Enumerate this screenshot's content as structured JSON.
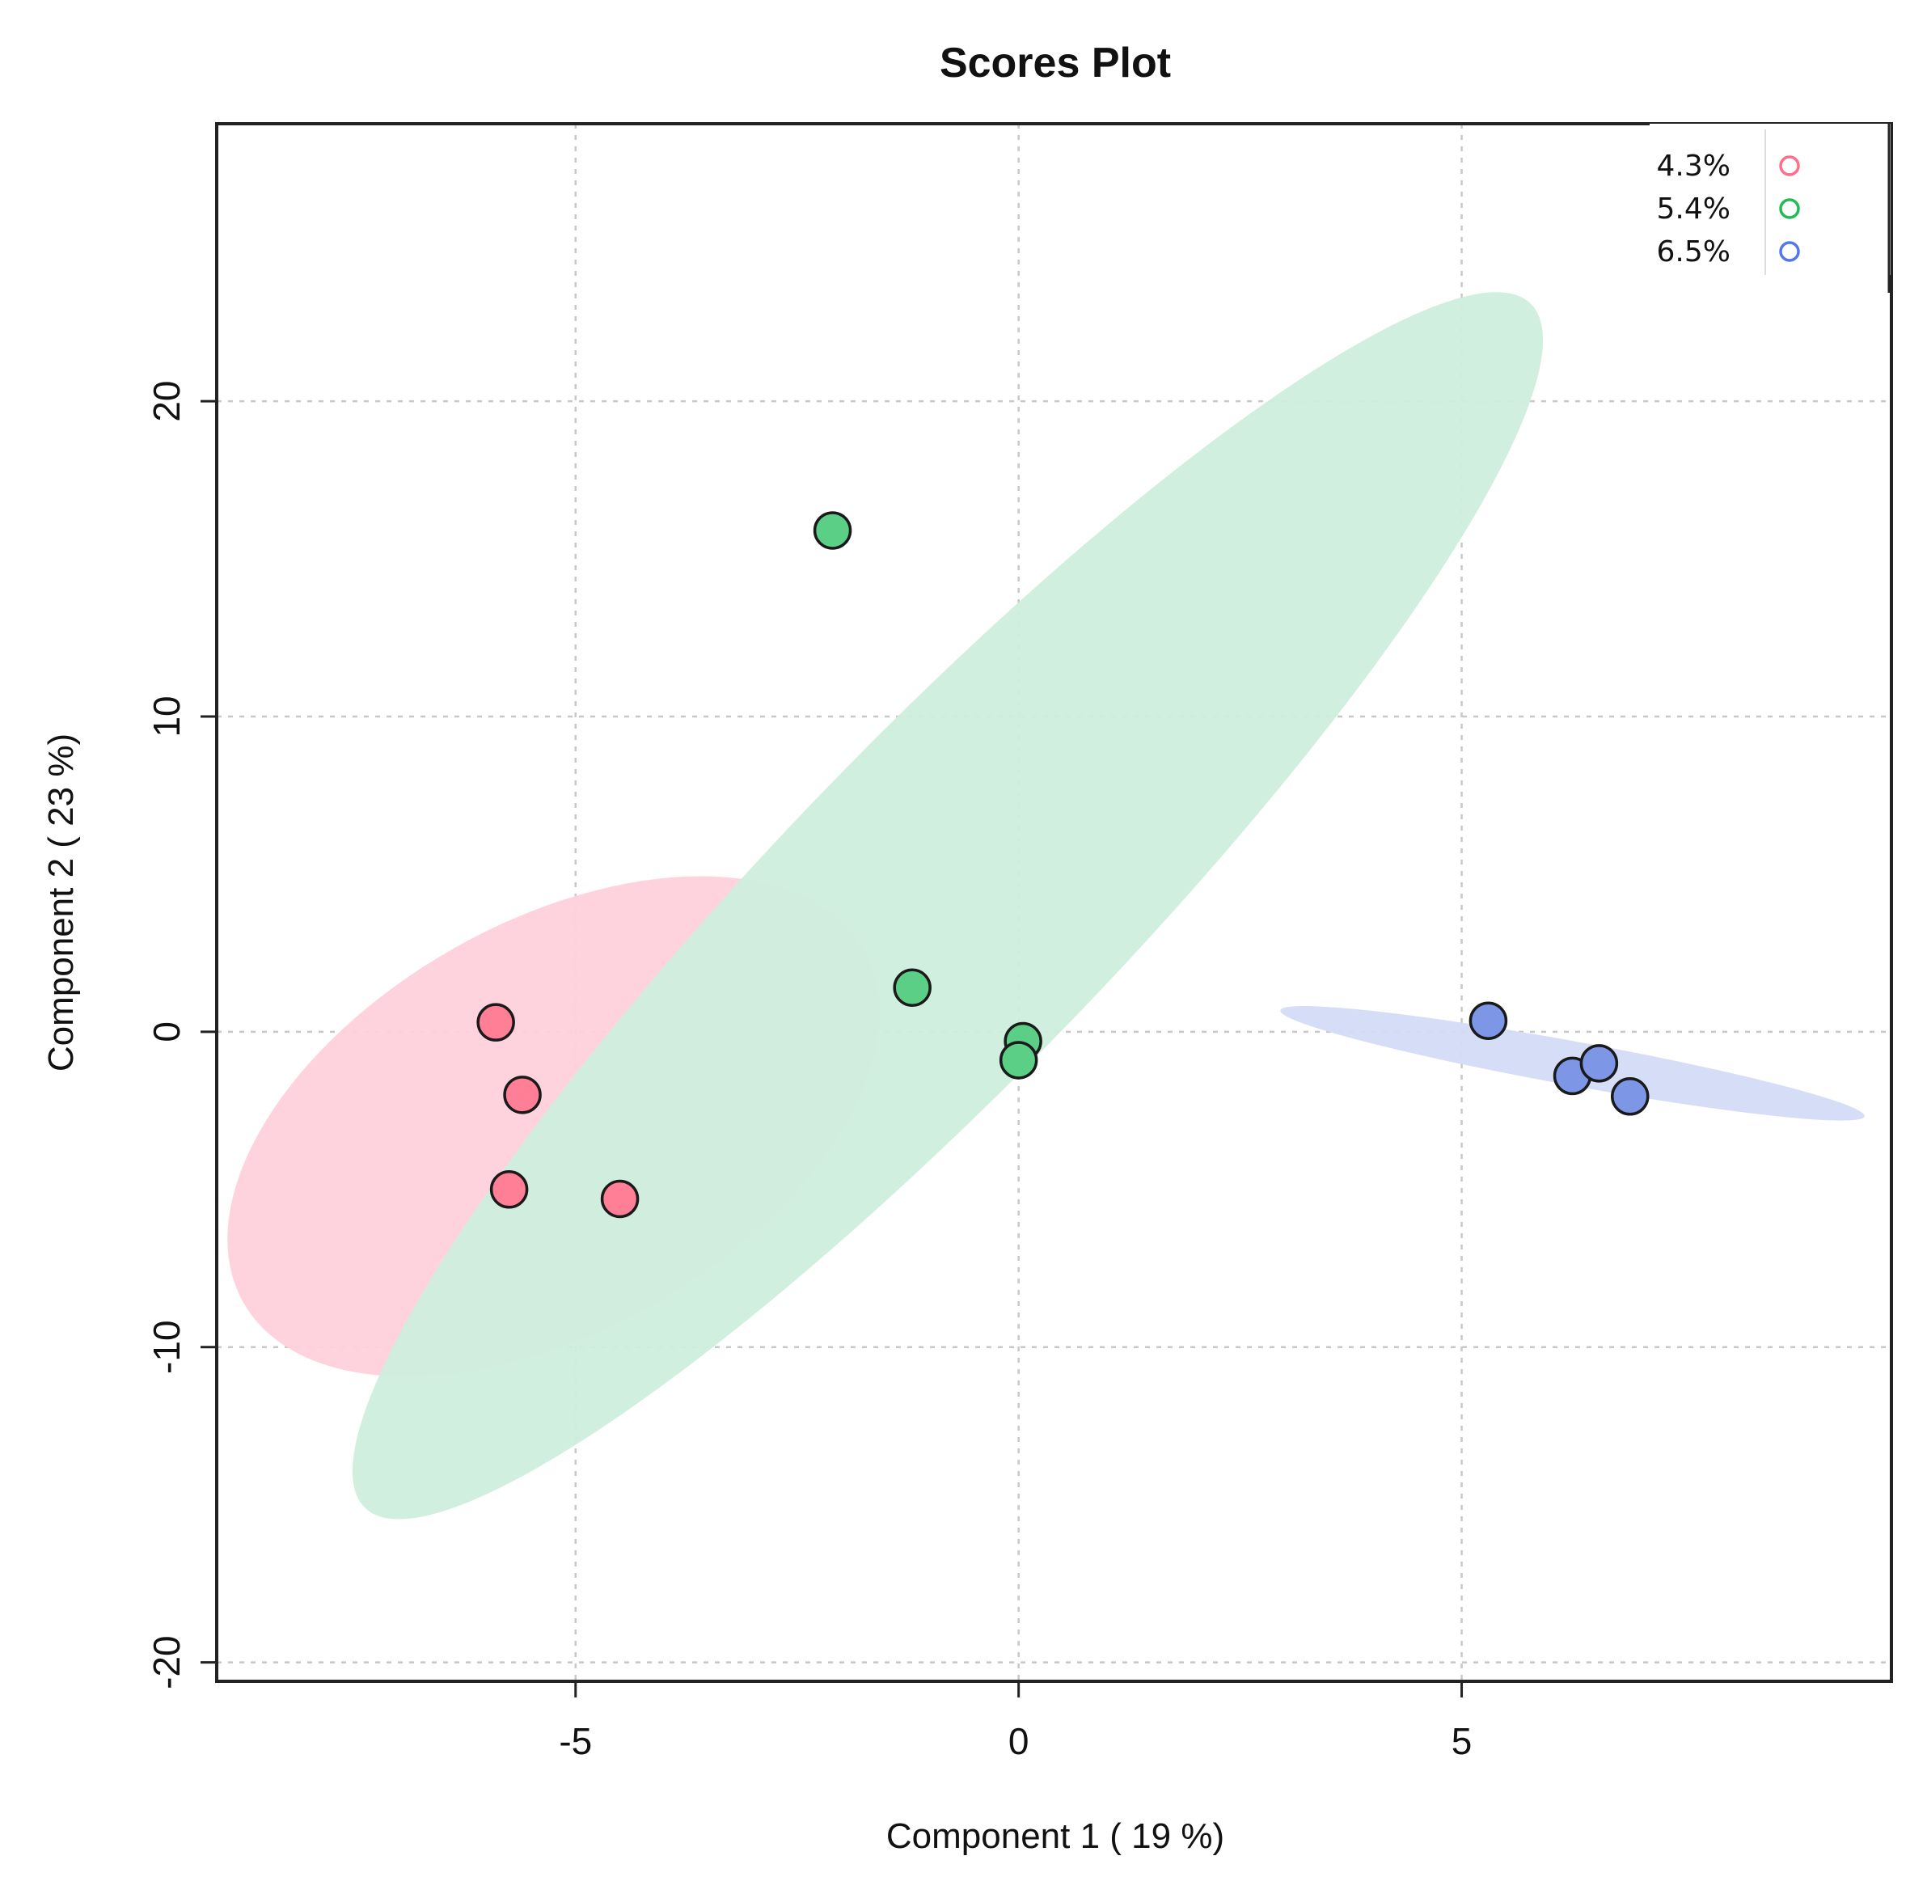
{
  "chart_data": {
    "type": "scatter",
    "title": "Scores Plot",
    "xlabel": "Component 1 ( 19 %)",
    "ylabel": "Component 2 ( 23 %)",
    "xlim": [
      -9.05,
      9.85
    ],
    "ylim": [
      -20.6,
      28.8
    ],
    "xticks": [
      -5,
      0,
      5
    ],
    "xtick_labels": [
      "-5",
      "0",
      "5"
    ],
    "yticks": [
      -20,
      -10,
      0,
      10,
      20
    ],
    "ytick_labels": [
      "-20",
      "-10",
      "0",
      "10",
      "20"
    ],
    "grid": true,
    "legend_position": "top-right",
    "series": [
      {
        "name": "4.3%",
        "color": "#ff6f8a",
        "fill": "#ff7f96",
        "ellipse_fill": "#ffd1dc",
        "points": [
          {
            "x": -5.9,
            "y": 0.3
          },
          {
            "x": -5.6,
            "y": -2.0
          },
          {
            "x": -5.75,
            "y": -5.0
          },
          {
            "x": -4.5,
            "y": -5.3
          }
        ],
        "ellipse": {
          "cx": -5.25,
          "cy": -3.0,
          "rx": 6.6,
          "ry": 2.65,
          "angle_deg": 58
        }
      },
      {
        "name": "5.4%",
        "color": "#22bb55",
        "fill": "#5ccf86",
        "ellipse_fill": "#cdeedd",
        "points": [
          {
            "x": -2.1,
            "y": 15.9
          },
          {
            "x": -1.2,
            "y": 1.4
          },
          {
            "x": 0.05,
            "y": -0.3
          },
          {
            "x": 0.0,
            "y": -0.9
          }
        ],
        "ellipse": {
          "cx": -0.8,
          "cy": 4.0,
          "rx": 20.2,
          "ry": 2.0,
          "angle_deg": 71
        }
      },
      {
        "name": "6.5%",
        "color": "#5577ee",
        "fill": "#7d97e6",
        "ellipse_fill": "#d3dcf6",
        "points": [
          {
            "x": 5.3,
            "y": 0.35
          },
          {
            "x": 6.25,
            "y": -1.4
          },
          {
            "x": 6.55,
            "y": -1.0
          },
          {
            "x": 6.9,
            "y": -2.05
          }
        ],
        "ellipse": {
          "cx": 6.25,
          "cy": -1.0,
          "rx": 3.7,
          "ry": 0.45,
          "angle_deg": -27
        }
      }
    ]
  }
}
